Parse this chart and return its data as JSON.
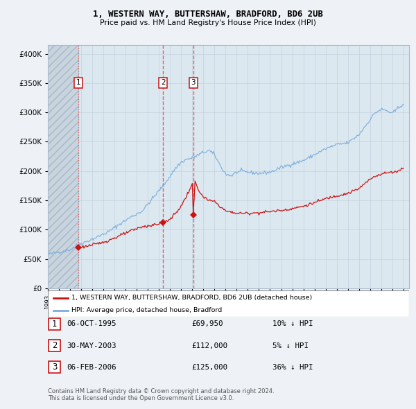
{
  "title": "1, WESTERN WAY, BUTTERSHAW, BRADFORD, BD6 2UB",
  "subtitle": "Price paid vs. HM Land Registry's House Price Index (HPI)",
  "ytick_values": [
    0,
    50000,
    100000,
    150000,
    200000,
    250000,
    300000,
    350000,
    400000
  ],
  "ylim": [
    0,
    415000
  ],
  "xlim_start": 1993.0,
  "xlim_end": 2025.5,
  "hpi_color": "#7aaddb",
  "price_color": "#cc1111",
  "vline_color_dashed": "#e06060",
  "vline_color_sale1": "#bbbbcc",
  "sale_marker_color": "#cc1111",
  "hatched_region_end": 1995.75,
  "sales": [
    {
      "num": 1,
      "year": 1995.77,
      "price": 69950,
      "label": "1",
      "date": "06-OCT-1995",
      "pct": "10%",
      "dir": "↓",
      "vline_style": "dotted"
    },
    {
      "num": 2,
      "year": 2003.38,
      "price": 112000,
      "label": "2",
      "date": "30-MAY-2003",
      "pct": "5%",
      "dir": "↓",
      "vline_style": "dashed"
    },
    {
      "num": 3,
      "year": 2006.09,
      "price": 125000,
      "label": "3",
      "date": "06-FEB-2006",
      "pct": "36%",
      "dir": "↓",
      "vline_style": "dashed"
    }
  ],
  "legend_label_red": "1, WESTERN WAY, BUTTERSHAW, BRADFORD, BD6 2UB (detached house)",
  "legend_label_blue": "HPI: Average price, detached house, Bradford",
  "table_rows": [
    {
      "num": "1",
      "date": "06-OCT-1995",
      "price": "£69,950",
      "pct": "10% ↓ HPI"
    },
    {
      "num": "2",
      "date": "30-MAY-2003",
      "price": "£112,000",
      "pct": "5% ↓ HPI"
    },
    {
      "num": "3",
      "date": "06-FEB-2006",
      "price": "£125,000",
      "pct": "36% ↓ HPI"
    }
  ],
  "footer": "Contains HM Land Registry data © Crown copyright and database right 2024.\nThis data is licensed under the Open Government Licence v3.0.",
  "bg_color": "#eef2f7",
  "plot_bg": "#dce8f0",
  "grid_color": "#c5d0dc",
  "hatch_color": "#c0ccd8"
}
